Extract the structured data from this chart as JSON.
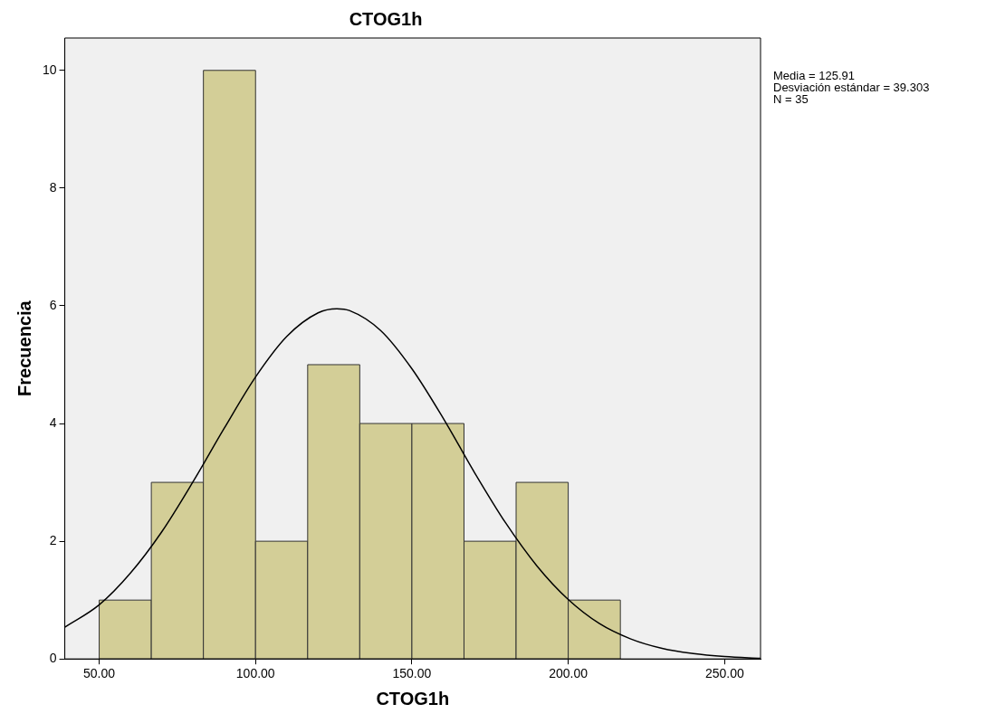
{
  "chart_data": {
    "type": "histogram",
    "title": "CTOG1h",
    "xlabel": "CTOG1h",
    "ylabel": "Frecuencia",
    "bins": [
      50,
      66.67,
      83.33,
      100,
      116.67,
      133.33,
      150,
      166.67,
      183.33,
      200,
      216.67
    ],
    "values": [
      1,
      3,
      10,
      2,
      5,
      4,
      4,
      2,
      3,
      1
    ],
    "color": "#d3ce97",
    "series": [
      {
        "type": "line",
        "color": "#000000",
        "x": [
          39,
          50,
          60,
          70,
          80,
          90,
          100,
          110,
          120,
          126,
          130,
          140,
          150,
          160,
          170,
          180,
          190,
          200,
          210,
          220,
          230,
          240,
          250,
          261.5
        ],
        "values": [
          0.54,
          0.92,
          1.46,
          2.16,
          3.01,
          3.92,
          4.79,
          5.48,
          5.88,
          5.95,
          5.92,
          5.58,
          4.93,
          4.09,
          3.17,
          2.31,
          1.58,
          1.01,
          0.6,
          0.34,
          0.18,
          0.09,
          0.04,
          0.01
        ]
      }
    ],
    "xlim": [
      39,
      261.5
    ],
    "xticks": [
      {
        "value": 50,
        "label": "50.00"
      },
      {
        "value": 100,
        "label": "100.00"
      },
      {
        "value": 150,
        "label": "150.00"
      },
      {
        "value": 200,
        "label": "200.00"
      },
      {
        "value": 250,
        "label": "250.00"
      }
    ],
    "ylim": [
      0,
      10.55
    ],
    "yticks": [
      0,
      2,
      4,
      6,
      8,
      10
    ],
    "annotations": [
      "Media = 125.91",
      "Desviación estándar = 39.303",
      "N = 35"
    ]
  }
}
